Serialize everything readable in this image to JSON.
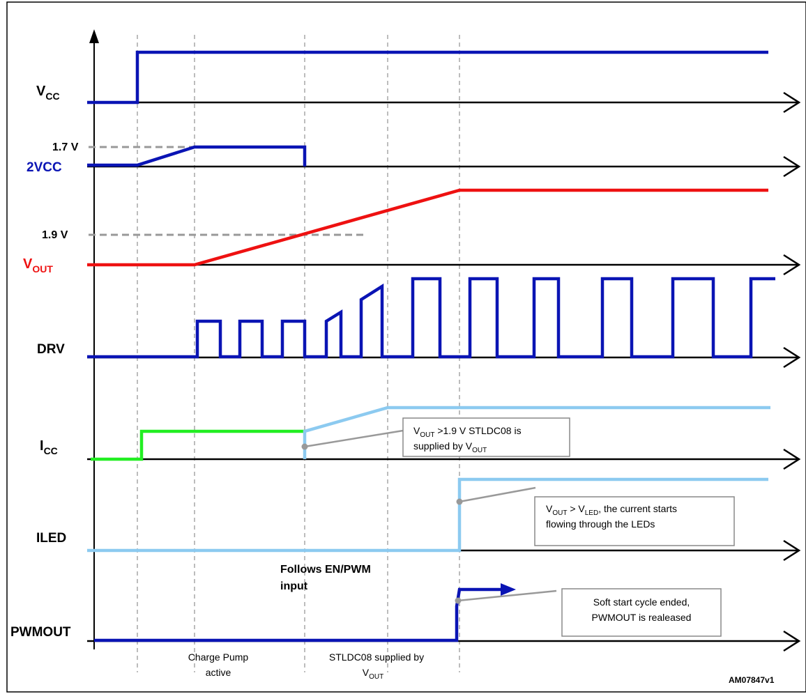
{
  "colors": {
    "blue": "#0a14b4",
    "red": "#ee1111",
    "green": "#22ee22",
    "light_blue": "#8ccaf0",
    "dashed_gray": "#999999",
    "axis": "#000000",
    "note_border": "#888888"
  },
  "signals": {
    "vcc": {
      "main": "V",
      "sub": "CC"
    },
    "twovcc": {
      "label": "2VCC"
    },
    "vout": {
      "main": "V",
      "sub": "OUT"
    },
    "drv": {
      "label": "DRV"
    },
    "icc": {
      "main": "I",
      "sub": "CC"
    },
    "iled": {
      "label": "ILED"
    },
    "pwmout": {
      "label": "PWMOUT"
    }
  },
  "levels": {
    "v17": "1.7 V",
    "v19": "1.9 V"
  },
  "notes": {
    "note1": {
      "line1_v": "V",
      "line1_sub": "OUT",
      "line1_rest": " >1.9 V STLDC08 is",
      "line2_pre": "supplied by V",
      "line2_sub": "OUT"
    },
    "note2": {
      "line1_v": "V",
      "line1_sub1": "OUT",
      "line1_mid": " > V",
      "line1_sub2": "LED",
      "line1_rest": ", the current  starts",
      "line2": "flowing through the LEDs"
    },
    "note3": {
      "line1": "Soft start cycle ended,",
      "line2": "PWMOUT is realeased"
    }
  },
  "annotations": {
    "follows_line1": "Follows EN/PWM",
    "follows_line2": "input"
  },
  "phases": {
    "charge_pump_line1": "Charge Pump",
    "charge_pump_line2": "active",
    "supplied_line1": "STLDC08 supplied by",
    "supplied_line2_main": "V",
    "supplied_line2_sub": "OUT"
  },
  "figure_id": "AM07847v1"
}
